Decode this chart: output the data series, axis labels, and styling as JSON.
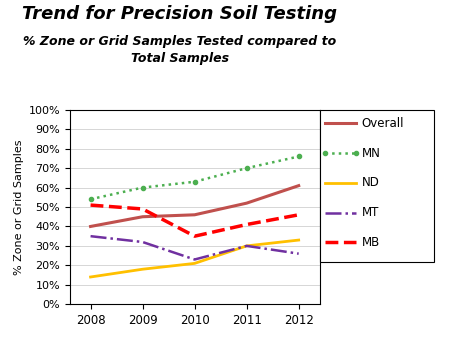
{
  "title1": "Trend for Precision Soil Testing",
  "title2": "% Zone or Grid Samples Tested compared to\nTotal Samples",
  "ylabel": "% Zone or Grid Samples",
  "years": [
    2008,
    2009,
    2010,
    2011,
    2012
  ],
  "series_order": [
    "Overall",
    "MN",
    "ND",
    "MT",
    "MB"
  ],
  "series": {
    "Overall": {
      "values": [
        0.4,
        0.45,
        0.46,
        0.52,
        0.61
      ],
      "color": "#c0504d",
      "linewidth": 2.2,
      "linestyle": "solid"
    },
    "MN": {
      "values": [
        0.54,
        0.6,
        0.63,
        0.7,
        0.76
      ],
      "color": "#4CAF50",
      "linewidth": 1.8,
      "linestyle": "dotted",
      "marker": "o",
      "markersize": 3
    },
    "ND": {
      "values": [
        0.14,
        0.18,
        0.21,
        0.3,
        0.33
      ],
      "color": "#FFC000",
      "linewidth": 2.0,
      "linestyle": "solid"
    },
    "MT": {
      "values": [
        0.35,
        0.32,
        0.23,
        0.3,
        0.26
      ],
      "color": "#7030A0",
      "linewidth": 1.8,
      "linestyle": "dashdot"
    },
    "MB": {
      "values": [
        0.51,
        0.49,
        0.35,
        0.41,
        0.46
      ],
      "color": "#FF0000",
      "linewidth": 2.5,
      "linestyle": "dashed"
    }
  },
  "ylim": [
    0,
    1.0
  ],
  "yticks": [
    0.0,
    0.1,
    0.2,
    0.3,
    0.4,
    0.5,
    0.6,
    0.7,
    0.8,
    0.9,
    1.0
  ],
  "background_color": "#ffffff"
}
